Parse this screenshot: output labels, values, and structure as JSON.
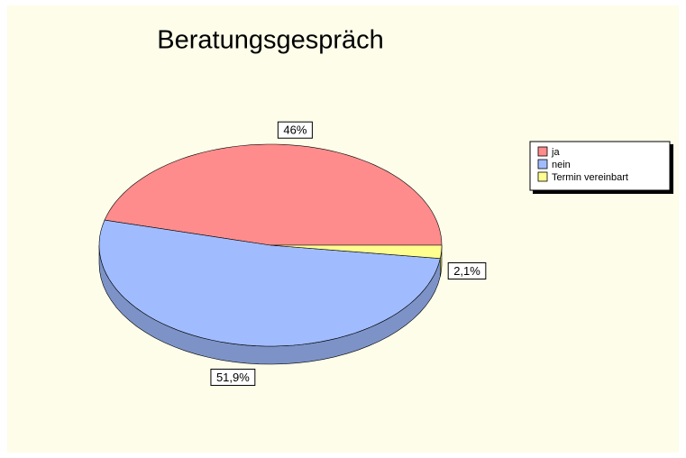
{
  "chart_data": {
    "type": "pie",
    "title": "Beratungsgespräch",
    "categories": [
      "ja",
      "nein",
      "Termin vereinbart"
    ],
    "values": [
      46,
      51.9,
      2.1
    ],
    "value_labels": [
      "46%",
      "51,9%",
      "2,1%"
    ],
    "colors": [
      "#ff8c8c",
      "#a0bcff",
      "#ffff90"
    ],
    "legend": "right"
  }
}
